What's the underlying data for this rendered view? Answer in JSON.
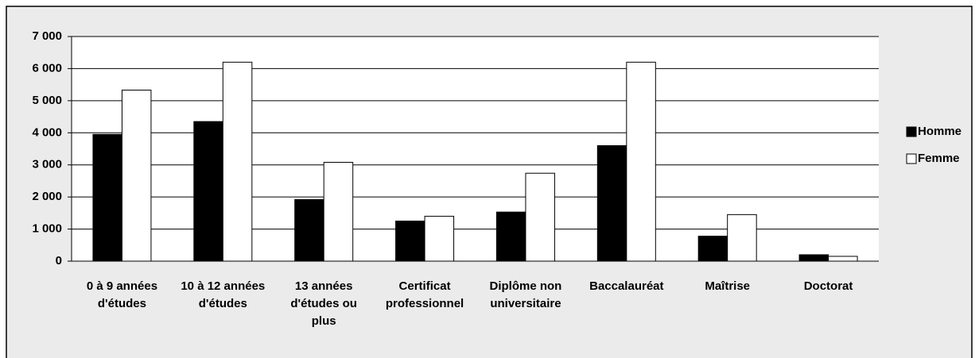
{
  "chart_data": {
    "type": "bar",
    "categories": [
      "0 à 9 années d'études",
      "10 à 12 années d'études",
      "13 années d'études ou plus",
      "Certificat professionnel",
      "Diplôme non universitaire",
      "Baccalauréat",
      "Maîtrise",
      "Doctorat"
    ],
    "series": [
      {
        "name": "Homme",
        "color": "#000000",
        "values": [
          3950,
          4350,
          1920,
          1250,
          1530,
          3600,
          780,
          200
        ]
      },
      {
        "name": "Femme",
        "color": "#ffffff",
        "values": [
          5330,
          6200,
          3080,
          1400,
          2740,
          6200,
          1450,
          150
        ]
      }
    ],
    "ylim": [
      0,
      7000
    ],
    "yticks": [
      0,
      {
        "value": 1000,
        "label": "1 000"
      },
      {
        "value": 2000,
        "label": "2 000"
      },
      {
        "value": 3000,
        "label": "3 000"
      },
      {
        "value": 4000,
        "label": "4 000"
      },
      {
        "value": 5000,
        "label": "5 000"
      },
      {
        "value": 6000,
        "label": "6 000"
      },
      {
        "value": 7000,
        "label": "7 000"
      }
    ],
    "grid": true,
    "legend": "right"
  }
}
